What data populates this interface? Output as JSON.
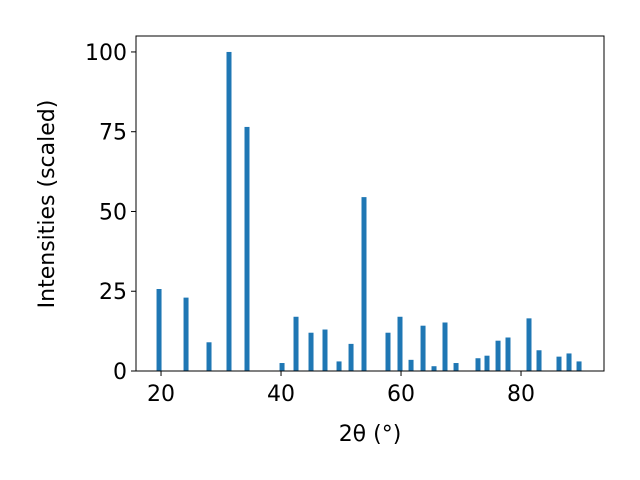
{
  "chart_data": {
    "type": "bar",
    "x_label": "2θ (°)",
    "y_label": "Intensities (scaled)",
    "x": [
      19.67,
      24.17,
      28.0,
      31.33,
      34.33,
      40.17,
      42.5,
      45.0,
      47.33,
      49.67,
      51.67,
      53.83,
      57.83,
      59.83,
      61.67,
      63.67,
      65.5,
      67.33,
      69.17,
      72.83,
      74.33,
      76.17,
      77.83,
      81.33,
      83.0,
      86.33,
      88.0,
      89.67
    ],
    "values": [
      25.7,
      23,
      9,
      100,
      76.5,
      2.5,
      17,
      12,
      13,
      3,
      8.5,
      54.5,
      12,
      17,
      3.5,
      14.2,
      1.5,
      15.2,
      2.5,
      4,
      4.8,
      9.5,
      10.5,
      16.5,
      6.5,
      4.5,
      5.5,
      3
    ],
    "color": "#1f77b4",
    "xlim": [
      15.83,
      93.83
    ],
    "xticks": [
      20,
      40,
      60,
      80
    ],
    "ylim": [
      0,
      105
    ],
    "yticks": [
      0,
      25,
      50,
      75,
      100
    ]
  }
}
